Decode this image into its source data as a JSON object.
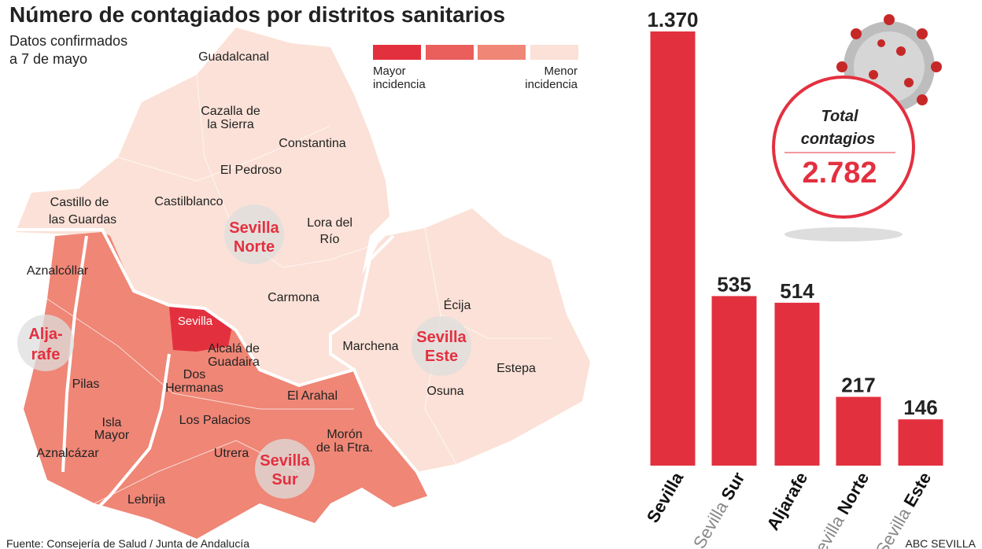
{
  "header": {
    "title": "Número de contagiados por distritos sanitarios",
    "subtitle": [
      "Datos confirmados",
      "a 7 de mayo"
    ]
  },
  "legend": {
    "high": [
      "Mayor",
      "incidencia"
    ],
    "low": [
      "Menor",
      "incidencia"
    ]
  },
  "map": {
    "towns": [
      [
        "Guadalcanal"
      ],
      [
        "Cazalla de",
        "la Sierra"
      ],
      [
        "Constantina"
      ],
      [
        "El Pedroso"
      ],
      [
        "Castilblanco"
      ],
      [
        "Castillo de",
        "las Guardas"
      ],
      [
        "Lora del",
        "Río"
      ],
      [
        "Aznalcóllar"
      ],
      [
        "Carmona"
      ],
      [
        "Sevilla"
      ],
      [
        "Alcalá de",
        "Guadaira"
      ],
      [
        "Marchena"
      ],
      [
        "Écija"
      ],
      [
        "Estepa"
      ],
      [
        "Osuna"
      ],
      [
        "Dos",
        "Hermanas"
      ],
      [
        "Pilas"
      ],
      [
        "El Arahal"
      ],
      [
        "Los Palacios"
      ],
      [
        "Isla",
        "Mayor"
      ],
      [
        "Morón",
        "de la Ftra."
      ],
      [
        "Aznalcázar"
      ],
      [
        "Utrera"
      ],
      [
        "Lebrija"
      ]
    ],
    "districts": [
      [
        "Sevilla",
        "Norte"
      ],
      [
        "Alja-",
        "rafe"
      ],
      [
        "Sevilla",
        "Este"
      ],
      [
        "Sevilla",
        "Sur"
      ]
    ]
  },
  "total": {
    "label": [
      "Total",
      "contagios"
    ],
    "value": "2.782"
  },
  "chart_data": {
    "type": "bar",
    "categories": [
      "Sevilla",
      "Sevilla Sur",
      "Aljarafe",
      "Sevilla Norte",
      "Sevilla Este"
    ],
    "values": [
      1370,
      535,
      514,
      217,
      146
    ],
    "value_labels": [
      "1.370",
      "535",
      "514",
      "217",
      "146"
    ],
    "color": "#e3303f"
  },
  "footer": {
    "source": "Fuente: Consejería de Salud / Junta de Andalucía",
    "credit": "ABC SEVILLA"
  }
}
